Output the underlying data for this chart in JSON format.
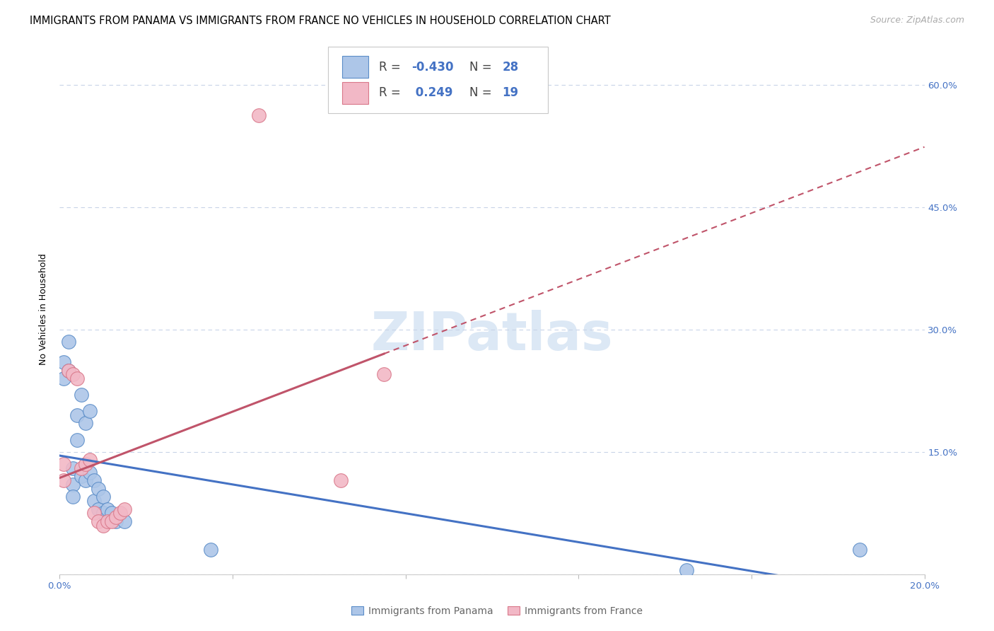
{
  "title": "IMMIGRANTS FROM PANAMA VS IMMIGRANTS FROM FRANCE NO VEHICLES IN HOUSEHOLD CORRELATION CHART",
  "source": "Source: ZipAtlas.com",
  "ylabel": "No Vehicles in Household",
  "xlim": [
    0.0,
    0.2
  ],
  "ylim": [
    0.0,
    0.65
  ],
  "xticks": [
    0.0,
    0.04,
    0.08,
    0.12,
    0.16,
    0.2
  ],
  "yticks": [
    0.0,
    0.15,
    0.3,
    0.45,
    0.6
  ],
  "panama_R": -0.43,
  "panama_N": 28,
  "france_R": 0.249,
  "france_N": 19,
  "panama_color": "#adc6e8",
  "panama_edge_color": "#5b8dc8",
  "panama_line_color": "#4472c4",
  "france_color": "#f2b8c6",
  "france_edge_color": "#d9788a",
  "france_line_color": "#c0546a",
  "background_color": "#ffffff",
  "grid_color": "#c8d4e8",
  "watermark_color": "#dce8f5",
  "panama_x": [
    0.001,
    0.001,
    0.002,
    0.002,
    0.003,
    0.003,
    0.003,
    0.004,
    0.004,
    0.005,
    0.005,
    0.006,
    0.006,
    0.007,
    0.007,
    0.008,
    0.008,
    0.009,
    0.009,
    0.01,
    0.01,
    0.011,
    0.012,
    0.013,
    0.015,
    0.035,
    0.145,
    0.185
  ],
  "panama_y": [
    0.26,
    0.24,
    0.285,
    0.25,
    0.13,
    0.11,
    0.095,
    0.195,
    0.165,
    0.22,
    0.12,
    0.185,
    0.115,
    0.2,
    0.125,
    0.115,
    0.09,
    0.105,
    0.08,
    0.095,
    0.075,
    0.08,
    0.075,
    0.065,
    0.065,
    0.03,
    0.005,
    0.03
  ],
  "france_x": [
    0.001,
    0.001,
    0.002,
    0.003,
    0.004,
    0.005,
    0.006,
    0.007,
    0.008,
    0.009,
    0.01,
    0.011,
    0.012,
    0.013,
    0.014,
    0.015,
    0.046,
    0.065,
    0.075
  ],
  "france_y": [
    0.135,
    0.115,
    0.25,
    0.245,
    0.24,
    0.13,
    0.135,
    0.14,
    0.075,
    0.065,
    0.06,
    0.065,
    0.065,
    0.07,
    0.075,
    0.08,
    0.563,
    0.115,
    0.245
  ],
  "title_fontsize": 10.5,
  "source_fontsize": 9,
  "axis_label_fontsize": 9,
  "tick_fontsize": 9.5,
  "legend_fontsize": 12
}
